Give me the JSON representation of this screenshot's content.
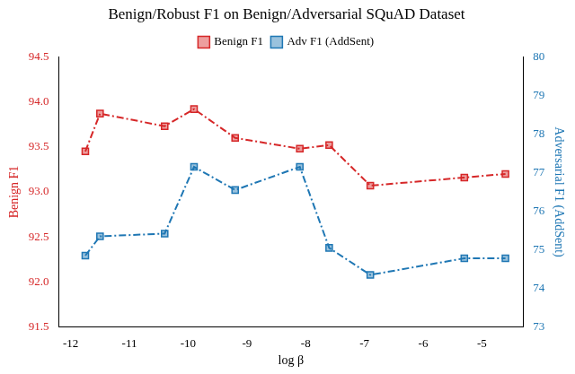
{
  "chart_data": {
    "type": "line",
    "title": "Benign/Robust F1 on Benign/Adversarial SQuAD Dataset",
    "x_label": "log β",
    "y_label": "Benign F1",
    "y2_label": "Adversarial F1 (AddSent)",
    "x": [
      -11.75,
      -11.5,
      -10.4,
      -9.9,
      -9.2,
      -8.1,
      -7.6,
      -6.9,
      -5.3,
      -4.6
    ],
    "series": [
      {
        "name": "Benign F1",
        "color": "#d62728",
        "marker": "square",
        "line_style": "dashdot",
        "values": [
          93.45,
          93.87,
          93.73,
          93.92,
          93.6,
          93.48,
          93.52,
          93.07,
          93.16,
          93.2
        ]
      },
      {
        "name": "Adv F1 (AddSent)",
        "color": "#1f77b4",
        "marker": "square",
        "line_style": "dashdot",
        "axis": "y2",
        "values": [
          74.85,
          75.35,
          75.42,
          77.15,
          76.55,
          77.15,
          75.05,
          74.35,
          74.78,
          74.78
        ]
      }
    ],
    "xlim": [
      -12.2,
      -4.3
    ],
    "xticks": [
      -12,
      -11,
      -10,
      -9,
      -8,
      -7,
      -6,
      -5
    ],
    "ylim": [
      91.5,
      94.5
    ],
    "yticks": [
      91.5,
      {
        "value": 92,
        "label": "92.0"
      },
      92.5,
      {
        "value": 93,
        "label": "93.0"
      },
      93.5,
      {
        "value": 94,
        "label": "94.0"
      },
      94.5
    ],
    "y2lim": [
      73,
      80
    ],
    "y2ticks": [
      73,
      74,
      75,
      76,
      77,
      78,
      79,
      80
    ],
    "grid": false,
    "legend": "top"
  }
}
